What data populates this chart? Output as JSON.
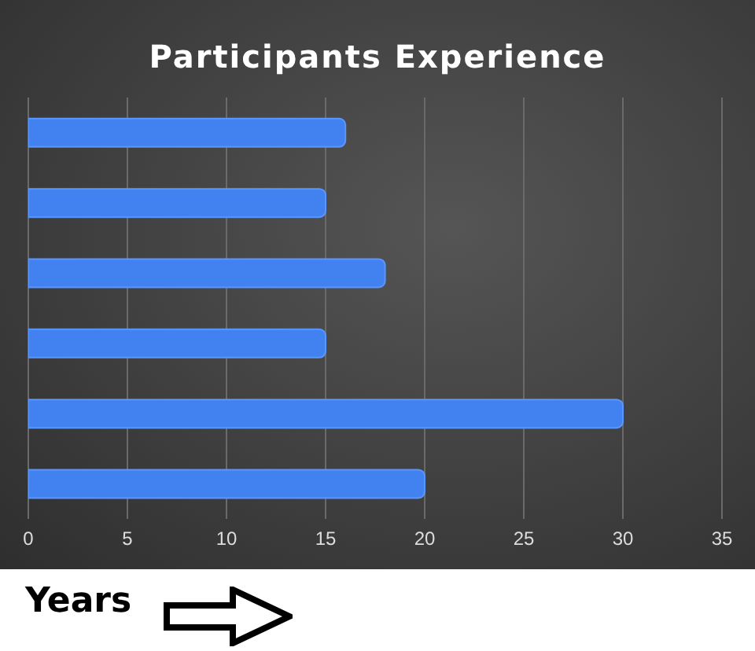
{
  "chart_data": {
    "type": "bar",
    "orientation": "horizontal",
    "title": "Participants Experience",
    "xlabel": "Years",
    "categories": [
      null,
      null,
      null,
      null,
      null,
      null
    ],
    "values": [
      16,
      15,
      18,
      15,
      30,
      20
    ],
    "color": "#4282f0",
    "xlim": [
      0,
      35
    ],
    "xticks": [
      0,
      5,
      10,
      15,
      20,
      25,
      30,
      35
    ],
    "tick_labels": "x",
    "grid": "x"
  }
}
